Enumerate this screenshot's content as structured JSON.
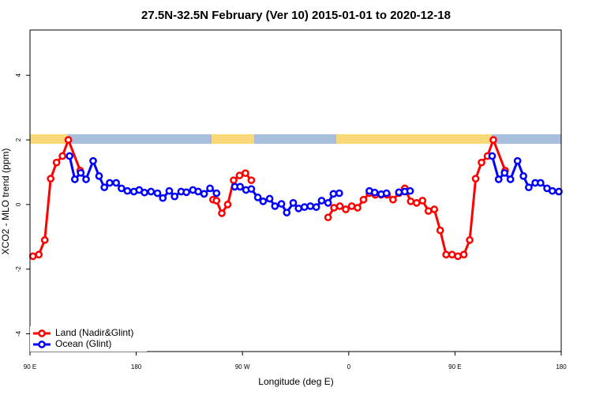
{
  "chart_data": {
    "type": "line",
    "title": "27.5N-32.5N February (Ver 10)   2015-01-01 to 2020-12-18",
    "x_label": "Longitude (deg E)",
    "y_label": "XCO2 - MLO trend (ppm)",
    "xlim": [
      90,
      540
    ],
    "ylim": [
      -4.55,
      5.4
    ],
    "xticks": [
      {
        "value": 90,
        "label": "90 E"
      },
      180,
      {
        "value": 270,
        "label": "90 W"
      },
      {
        "value": 360,
        "label": "0"
      },
      {
        "value": 450,
        "label": "90 E"
      },
      {
        "value": 540,
        "label": "180"
      }
    ],
    "yticks": [
      -4,
      -2,
      0,
      2,
      4
    ],
    "legend": "bottom-left",
    "series": [
      {
        "name": "Land (Nadir&Glint)",
        "color": "#ff0000",
        "x": [
          92.5,
          97.5,
          102.5,
          107.5,
          112.5,
          117.5,
          122.5,
          132.5,
          null,
          245,
          248,
          252.5,
          257.5,
          262.5,
          267.5,
          272.5,
          277.5,
          null,
          342.5,
          347.5,
          352.5,
          357.5,
          362.5,
          367.5,
          372.5,
          377.5,
          382.5,
          387.5,
          392.5,
          397.5,
          402.5,
          407.5,
          412.5,
          417.5,
          422.5,
          427.5,
          432.5,
          437.5,
          442.5,
          447.5,
          452.5,
          457.5,
          462.5,
          467.5,
          472.5,
          477.5,
          482.5,
          492.5
        ],
        "values": [
          -1.6,
          -1.55,
          -1.1,
          0.8,
          1.3,
          1.5,
          2.0,
          1.05,
          null,
          0.15,
          0.12,
          -0.27,
          0.0,
          0.75,
          0.9,
          0.97,
          0.75,
          null,
          -0.4,
          -0.1,
          -0.05,
          -0.15,
          -0.05,
          -0.1,
          0.15,
          0.35,
          0.3,
          0.3,
          0.3,
          0.15,
          0.35,
          0.5,
          0.1,
          0.05,
          0.12,
          -0.2,
          -0.15,
          -0.8,
          -1.55,
          -1.55,
          -1.6,
          -1.55,
          -1.1,
          0.8,
          1.3,
          1.5,
          2.0,
          1.05
        ]
      },
      {
        "name": "Ocean (Glint)",
        "color": "#0000ff",
        "x": [
          123.5,
          128,
          133,
          137.5,
          143.5,
          148.5,
          153,
          157.5,
          163,
          167.5,
          172.5,
          178,
          182.5,
          187,
          192.5,
          198,
          202.5,
          208,
          212.5,
          218,
          222.5,
          228,
          232.5,
          237.5,
          242.5,
          248,
          null,
          263.5,
          268,
          273,
          277.5,
          283,
          287.5,
          293,
          297.5,
          303,
          307.5,
          313,
          317.5,
          322.5,
          327.5,
          332.5,
          337,
          342.5,
          347,
          352,
          null,
          377.5,
          382,
          387.5,
          392,
          null,
          402.5,
          407.5,
          412,
          null,
          481.5,
          487,
          492,
          497,
          503,
          508,
          512.5,
          518,
          522.5,
          528,
          532.5,
          538
        ],
        "values": [
          1.5,
          0.78,
          0.98,
          0.78,
          1.35,
          0.88,
          0.53,
          0.67,
          0.67,
          0.5,
          0.42,
          0.4,
          0.45,
          0.37,
          0.4,
          0.35,
          0.2,
          0.42,
          0.25,
          0.4,
          0.38,
          0.45,
          0.4,
          0.33,
          0.5,
          0.35,
          null,
          0.55,
          0.55,
          0.45,
          0.48,
          0.22,
          0.1,
          0.18,
          -0.05,
          0.02,
          -0.25,
          0.05,
          -0.12,
          -0.08,
          -0.05,
          -0.08,
          0.12,
          0.05,
          0.33,
          0.35,
          null,
          0.42,
          0.37,
          0.32,
          0.35,
          null,
          0.38,
          0.4,
          0.42,
          null,
          1.5,
          0.78,
          0.98,
          0.78,
          1.35,
          0.88,
          0.53,
          0.67,
          0.67,
          0.5,
          0.42,
          0.4
        ]
      }
    ]
  }
}
